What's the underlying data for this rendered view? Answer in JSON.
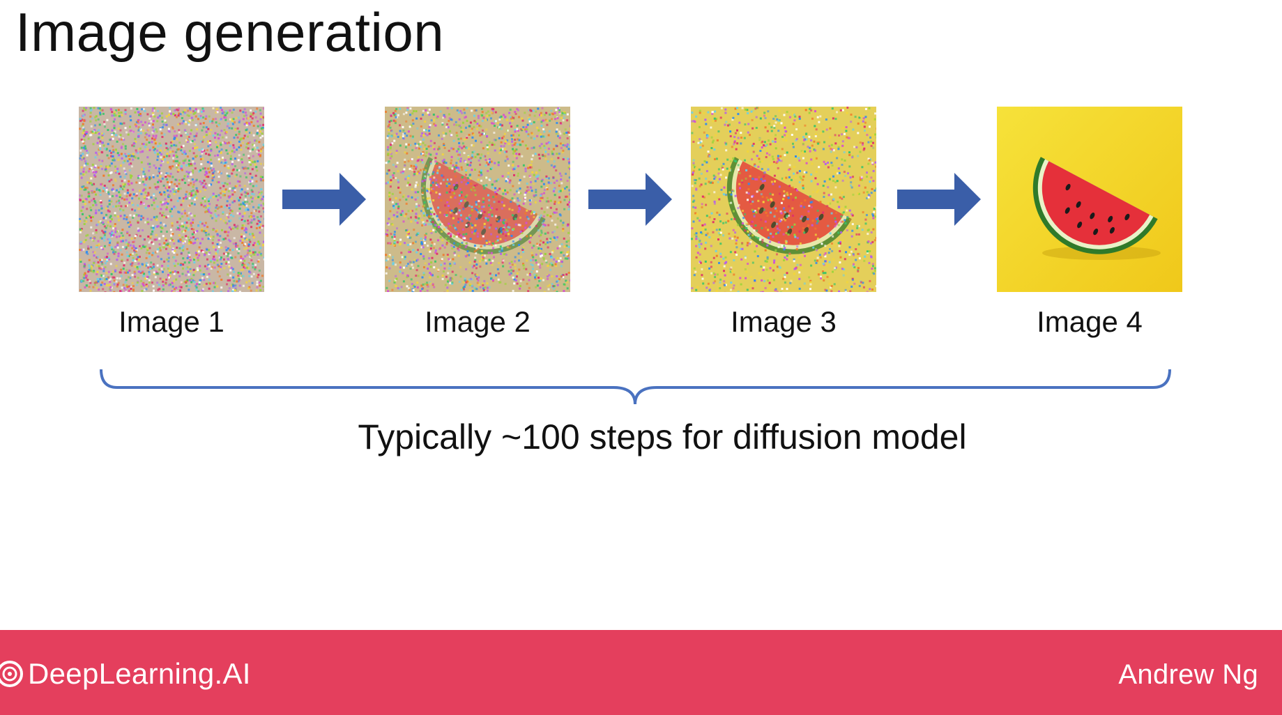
{
  "slide": {
    "title": "Image generation"
  },
  "steps": [
    {
      "caption": "Image 1",
      "noise_level": 1.0
    },
    {
      "caption": "Image 2",
      "noise_level": 0.75
    },
    {
      "caption": "Image 3",
      "noise_level": 0.45
    },
    {
      "caption": "Image 4",
      "noise_level": 0.0
    }
  ],
  "arrows": [
    "arrow-right-icon",
    "arrow-right-icon",
    "arrow-right-icon"
  ],
  "brace_label": "Typically ~100 steps for diffusion model",
  "footer": {
    "brand": "DeepLearning.AI",
    "brand_icon": "deeplearning-logo-icon",
    "author": "Andrew Ng"
  },
  "colors": {
    "arrow": "#3a5ea8",
    "brace": "#4a72c0",
    "footer_bg": "#e43f5d",
    "watermelon_flesh": "#e5303a",
    "watermelon_rind": "#2f7a2a",
    "background_yellow": "#f3d51f"
  }
}
